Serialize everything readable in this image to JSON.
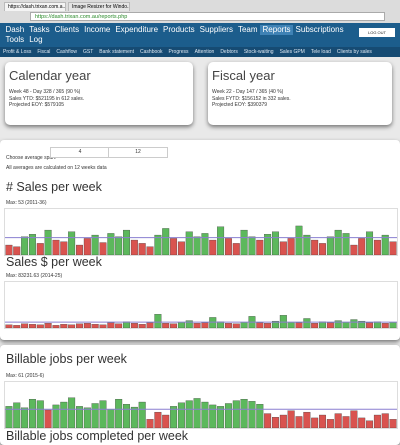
{
  "browser": {
    "tabs": [
      "https://dash.trixan.com.a...",
      "Image Resizer for Windo..."
    ],
    "url": "https://dash.trixan.com.au/reports.php"
  },
  "nav": {
    "items": [
      "Dash",
      "Tasks",
      "Clients",
      "Income",
      "Expenditure",
      "Products",
      "Suppliers",
      "Team",
      "Reports",
      "Subscriptions",
      "Tools",
      "Log"
    ],
    "active": 8,
    "button": "LOG OUT"
  },
  "subnav": [
    "Profit & Loss",
    "Fiscal",
    "Cashflow",
    "GST",
    "Bank statement",
    "Cashbook",
    "Progress",
    "Attention",
    "Debtors",
    "Stock-waiting",
    "Sales GPM",
    "Tele load",
    "Clients by sales"
  ],
  "cards": [
    {
      "title": "Calendar year",
      "lines": [
        "Week 48 - Day 328 / 365 (90 %)",
        "Sales YTD: $521195 in 612 sales.",
        "Projected EOY: $579105"
      ]
    },
    {
      "title": "Fiscal year",
      "lines": [
        "Week 22 - Day 147 / 365 (40 %)",
        "Sales FYTD: $156152 in 332 sales.",
        "Projected EOY: $390379"
      ]
    }
  ],
  "controls": {
    "label": "Choose average span:",
    "options": [
      "4",
      "12"
    ],
    "note": "All averages are calculated on 12 weeks data"
  },
  "charts": [
    {
      "type": "bar",
      "title": "# Sales per week",
      "max_label": "Max: 53 (2011-36)",
      "ylim": [
        0,
        53
      ],
      "average": 21,
      "above_color": "#5cb85c",
      "below_color": "#d9534f",
      "average_color": "#8a7fd0",
      "values": [
        12,
        10,
        22,
        25,
        14,
        30,
        18,
        16,
        28,
        12,
        20,
        24,
        15,
        26,
        22,
        30,
        18,
        14,
        10,
        24,
        32,
        20,
        16,
        28,
        22,
        26,
        18,
        34,
        20,
        14,
        30,
        22,
        18,
        25,
        28,
        16,
        20,
        35,
        24,
        18,
        14,
        22,
        30,
        26,
        12,
        20,
        28,
        18,
        24,
        16
      ]
    },
    {
      "type": "bar",
      "title": "Sales $ per week",
      "max_label": "Max: 83231.63 (2014-25)",
      "ylim": [
        0,
        83231.63
      ],
      "average": 11000,
      "above_color": "#5cb85c",
      "below_color": "#d9534f",
      "average_color": "#8a7fd0",
      "values": [
        6000,
        5000,
        8000,
        7000,
        6000,
        9000,
        5000,
        7000,
        6000,
        8000,
        9000,
        7000,
        6000,
        10000,
        8000,
        12000,
        9000,
        7000,
        10000,
        26000,
        9000,
        8000,
        11000,
        14000,
        9000,
        10000,
        20000,
        12000,
        9000,
        8000,
        11000,
        22000,
        10000,
        9000,
        13000,
        24000,
        11000,
        10000,
        18000,
        9000,
        12000,
        10000,
        14000,
        11000,
        16000,
        13000,
        10000,
        12000,
        9000,
        11000
      ]
    },
    {
      "type": "bar",
      "title": "Billable jobs per week",
      "max_label": "Max: 61 (2015-6)",
      "ylim": [
        0,
        61
      ],
      "average": 26,
      "above_color": "#5cb85c",
      "below_color": "#d9534f",
      "average_color": "#8a7fd0",
      "values": [
        30,
        35,
        28,
        40,
        38,
        25,
        32,
        36,
        42,
        30,
        28,
        34,
        38,
        26,
        40,
        33,
        29,
        36,
        12,
        22,
        18,
        30,
        35,
        38,
        41,
        36,
        32,
        30,
        34,
        38,
        40,
        37,
        33,
        20,
        15,
        18,
        24,
        16,
        22,
        14,
        18,
        12,
        20,
        16,
        24,
        14,
        10,
        18,
        20,
        12
      ]
    }
  ],
  "next_title": "Billable jobs completed per week"
}
